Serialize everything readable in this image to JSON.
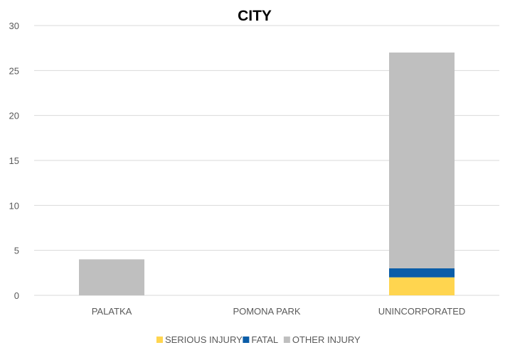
{
  "chart_data": {
    "type": "bar",
    "stacked": true,
    "title": "CITY",
    "categories": [
      "PALATKA",
      "POMONA PARK",
      "UNINCORPORATED"
    ],
    "series": [
      {
        "name": "SERIOUS INJURY",
        "values": [
          0,
          0,
          2
        ],
        "color": "#FFD54F"
      },
      {
        "name": "FATAL",
        "values": [
          0,
          0,
          1
        ],
        "color": "#0B5DA8"
      },
      {
        "name": "OTHER INJURY",
        "values": [
          4,
          0,
          24
        ],
        "color": "#BFBFBF"
      }
    ],
    "ylim": [
      0,
      30
    ],
    "yticks": [
      0,
      5,
      10,
      15,
      20,
      25,
      30
    ],
    "grid": true,
    "legend_position": "bottom"
  }
}
